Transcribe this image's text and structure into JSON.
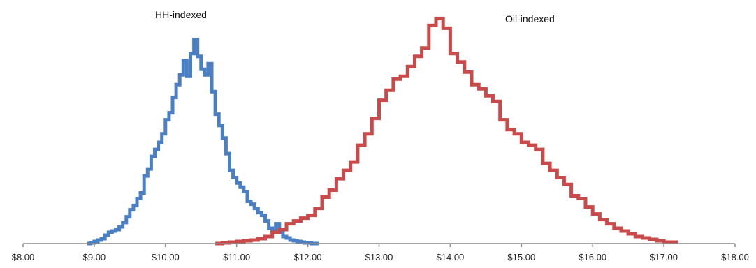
{
  "chart_data": {
    "type": "line",
    "subtype": "step-histogram",
    "title": "",
    "xlabel": "",
    "ylabel": "",
    "xlim": [
      8,
      18
    ],
    "x_tick_labels": [
      "$8.00",
      "$9.00",
      "$10.00",
      "$11.00",
      "$12.00",
      "$13.00",
      "$14.00",
      "$15.00",
      "$16.00",
      "$17.00",
      "$18.00"
    ],
    "y_axis_shown": false,
    "grid": false,
    "legend": "none",
    "series": [
      {
        "name": "HH-indexed",
        "color": "#4a7fc4",
        "x": [
          8.9,
          8.95,
          9.0,
          9.05,
          9.1,
          9.15,
          9.2,
          9.25,
          9.3,
          9.35,
          9.4,
          9.45,
          9.5,
          9.55,
          9.6,
          9.65,
          9.7,
          9.75,
          9.8,
          9.85,
          9.9,
          9.95,
          10.0,
          10.05,
          10.1,
          10.15,
          10.2,
          10.25,
          10.3,
          10.35,
          10.4,
          10.45,
          10.5,
          10.55,
          10.6,
          10.65,
          10.7,
          10.75,
          10.8,
          10.85,
          10.9,
          10.95,
          11.0,
          11.05,
          11.1,
          11.15,
          11.2,
          11.25,
          11.3,
          11.35,
          11.4,
          11.45,
          11.5,
          11.55,
          11.6,
          11.65,
          11.7,
          11.75,
          11.8,
          11.85,
          11.9,
          11.95,
          12.0,
          12.05,
          12.1
        ],
        "y": [
          0.0,
          0.3,
          0.9,
          1.5,
          2.1,
          3.6,
          4.8,
          5.4,
          6.0,
          7.2,
          9.0,
          11.5,
          14.5,
          16.3,
          19.3,
          21.7,
          29.0,
          32.0,
          37.4,
          40.4,
          43.4,
          47.1,
          53.1,
          56.1,
          62.7,
          68.2,
          72.4,
          78.5,
          71.8,
          81.5,
          87.5,
          80.3,
          74.8,
          72.4,
          77.2,
          65.2,
          55.5,
          50.7,
          45.3,
          38.6,
          31.4,
          28.3,
          26.0,
          24.2,
          22.3,
          18.1,
          16.9,
          15.1,
          13.3,
          12.1,
          9.7,
          6.6,
          5.4,
          8.5,
          4.8,
          3.0,
          2.4,
          1.5,
          1.2,
          0.9,
          0.6,
          0.3,
          0.3,
          0.0,
          0.0
        ]
      },
      {
        "name": "Oil-indexed",
        "color": "#c94a4a",
        "x": [
          10.7,
          10.8,
          10.9,
          11.0,
          11.1,
          11.2,
          11.3,
          11.4,
          11.5,
          11.6,
          11.7,
          11.8,
          11.9,
          12.0,
          12.1,
          12.2,
          12.3,
          12.4,
          12.5,
          12.6,
          12.7,
          12.8,
          12.9,
          13.0,
          13.1,
          13.2,
          13.3,
          13.4,
          13.5,
          13.6,
          13.7,
          13.8,
          13.9,
          14.0,
          14.1,
          14.2,
          14.3,
          14.4,
          14.5,
          14.6,
          14.7,
          14.8,
          14.9,
          15.0,
          15.1,
          15.2,
          15.3,
          15.4,
          15.5,
          15.6,
          15.7,
          15.8,
          15.9,
          16.0,
          16.1,
          16.2,
          16.3,
          16.4,
          16.5,
          16.6,
          16.7,
          16.8,
          16.9,
          17.0,
          17.1
        ],
        "y": [
          0.0,
          0.3,
          0.6,
          0.9,
          1.2,
          1.5,
          2.1,
          3.0,
          4.8,
          6.0,
          8.5,
          9.7,
          10.9,
          12.1,
          15.1,
          19.9,
          22.9,
          27.8,
          31.4,
          35.0,
          42.2,
          47.1,
          53.7,
          61.5,
          65.8,
          70.6,
          71.8,
          76.0,
          80.3,
          83.9,
          93.6,
          96.6,
          92.4,
          81.5,
          77.9,
          73.6,
          68.2,
          66.4,
          63.4,
          61.0,
          53.1,
          48.9,
          47.1,
          43.4,
          42.2,
          40.4,
          34.4,
          31.4,
          28.3,
          25.4,
          20.5,
          19.3,
          15.7,
          12.7,
          10.3,
          8.5,
          6.6,
          5.4,
          4.2,
          3.0,
          2.4,
          1.8,
          1.2,
          0.6,
          0.6
        ]
      }
    ],
    "annotations": [
      "HH-indexed",
      "Oil-indexed"
    ]
  }
}
